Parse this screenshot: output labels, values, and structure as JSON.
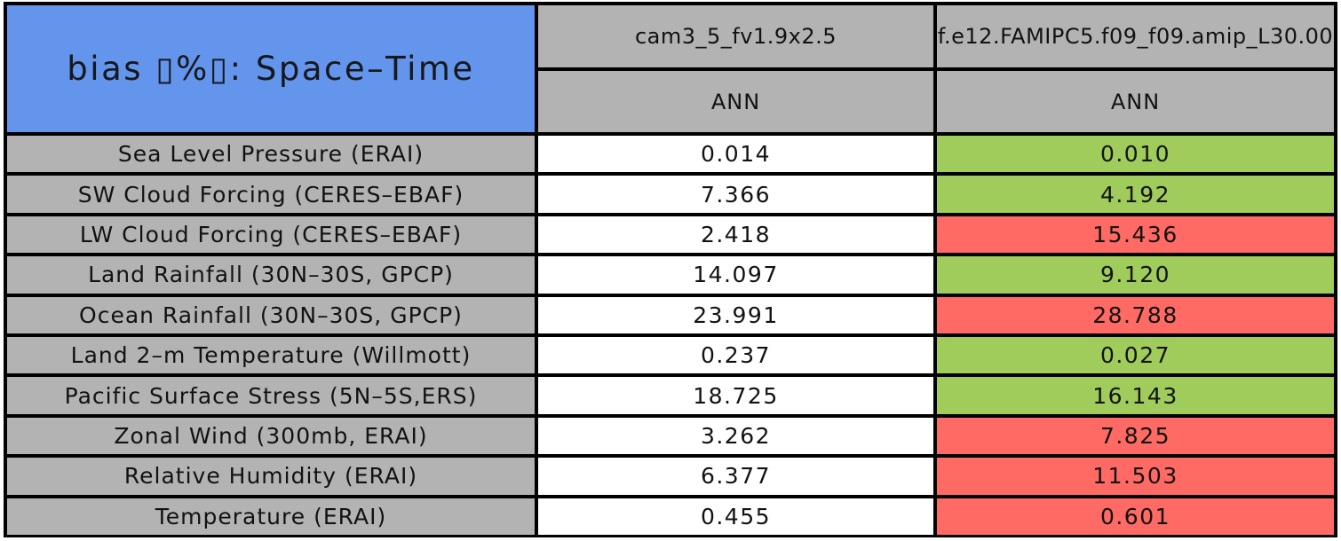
{
  "palette": {
    "header_blue": "#6495ED",
    "label_gray": "#B3B3B3",
    "good_green": "#A0CC5C",
    "bad_red": "#FF6B64",
    "value_white": "#FFFFFF",
    "border_black": "#000000"
  },
  "chart_data": {
    "type": "table",
    "title": "bias ▯%▯: Space–Time",
    "column_headers": [
      "cam3_5_fv1.9x2.5",
      "f.e12.FAMIPC5.f09_f09.amip_L30.00"
    ],
    "season_headers": [
      "ANN",
      "ANN"
    ],
    "rows": [
      {
        "label": "Sea Level Pressure (ERAI)",
        "values": [
          "0.014",
          "0.010"
        ],
        "cell_colors": [
          "white",
          "green"
        ]
      },
      {
        "label": "SW Cloud Forcing (CERES–EBAF)",
        "values": [
          "7.366",
          "4.192"
        ],
        "cell_colors": [
          "white",
          "green"
        ]
      },
      {
        "label": "LW Cloud Forcing (CERES–EBAF)",
        "values": [
          "2.418",
          "15.436"
        ],
        "cell_colors": [
          "white",
          "red"
        ]
      },
      {
        "label": "Land Rainfall (30N–30S, GPCP)",
        "values": [
          "14.097",
          "9.120"
        ],
        "cell_colors": [
          "white",
          "green"
        ]
      },
      {
        "label": "Ocean Rainfall (30N–30S, GPCP)",
        "values": [
          "23.991",
          "28.788"
        ],
        "cell_colors": [
          "white",
          "red"
        ]
      },
      {
        "label": "Land 2–m Temperature (Willmott)",
        "values": [
          "0.237",
          "0.027"
        ],
        "cell_colors": [
          "white",
          "green"
        ]
      },
      {
        "label": "Pacific Surface Stress (5N–5S,ERS)",
        "values": [
          "18.725",
          "16.143"
        ],
        "cell_colors": [
          "white",
          "green"
        ]
      },
      {
        "label": "Zonal Wind (300mb, ERAI)",
        "values": [
          "3.262",
          "7.825"
        ],
        "cell_colors": [
          "white",
          "red"
        ]
      },
      {
        "label": "Relative Humidity (ERAI)",
        "values": [
          "6.377",
          "11.503"
        ],
        "cell_colors": [
          "white",
          "red"
        ]
      },
      {
        "label": "Temperature (ERAI)",
        "values": [
          "0.455",
          "0.601"
        ],
        "cell_colors": [
          "white",
          "red"
        ]
      }
    ]
  }
}
